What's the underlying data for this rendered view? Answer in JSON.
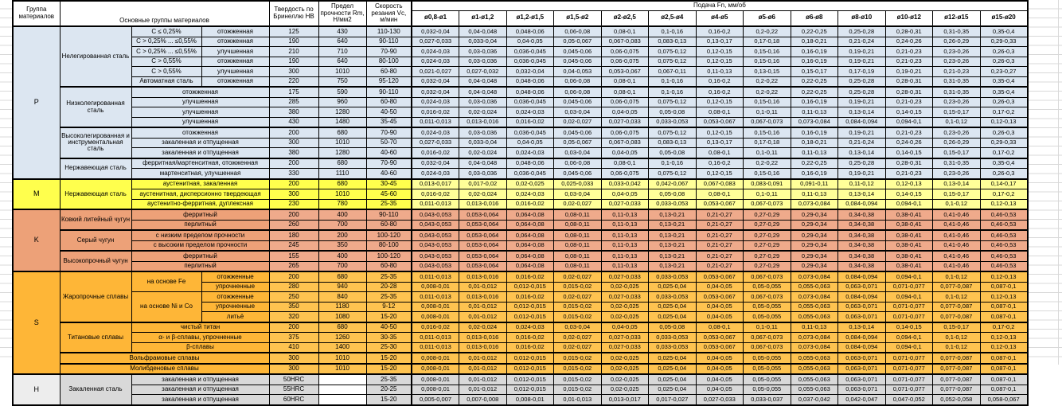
{
  "table": {
    "header": {
      "group_label": "Группа материалов",
      "main_groups_label": "Основные группы материалов",
      "hardness_label": "Твердость по Бринеллю HB",
      "strength_label": "Предел прочности Rm, Н/мм2",
      "speed_label": "Скорость резания Vc, м/мин",
      "feed_label": "Подача Fn, мм/об",
      "diameters": [
        "ø0,8-ø1",
        "ø1-ø1,2",
        "ø1,2-ø1,5",
        "ø1,5-ø2",
        "ø2-ø2,5",
        "ø2,5-ø4",
        "ø4-ø5",
        "ø5-ø6",
        "ø6-ø8",
        "ø8-ø10",
        "ø10-ø12",
        "ø12-ø15",
        "ø15-ø20"
      ]
    },
    "feed_sets": {
      "FA": [
        "0,032-0,04",
        "0,04-0,048",
        "0,048-0,06",
        "0,06-0,08",
        "0,08-0,1",
        "0,1-0,16",
        "0,16-0,2",
        "0,2-0,22",
        "0,22-0,25",
        "0,25-0,28",
        "0,28-0,31",
        "0,31-0,35",
        "0,35-0,4"
      ],
      "FB": [
        "0,027-0,033",
        "0,033-0,04",
        "0,04-0,05",
        "0,05-0,067",
        "0,067-0,083",
        "0,083-0,13",
        "0,13-0,17",
        "0,17-0,18",
        "0,18-0,21",
        "0,21-0,24",
        "0,24-0,26",
        "0,26-0,29",
        "0,29-0,33"
      ],
      "FC": [
        "0,024-0,03",
        "0,03-0,036",
        "0,036-0,045",
        "0,045-0,06",
        "0,06-0,075",
        "0,075-0,12",
        "0,12-0,15",
        "0,15-0,16",
        "0,16-0,19",
        "0,19-0,21",
        "0,21-0,23",
        "0,23-0,26",
        "0,26-0,3"
      ],
      "FD": [
        "0,021-0,027",
        "0,027-0,032",
        "0,032-0,04",
        "0,04-0,053",
        "0,053-0,067",
        "0,067-0,11",
        "0,11-0,13",
        "0,13-0,15",
        "0,15-0,17",
        "0,17-0,19",
        "0,19-0,21",
        "0,21-0,23",
        "0,23-0,27"
      ],
      "FE": [
        "0,016-0,02",
        "0,02-0,024",
        "0,024-0,03",
        "0,03-0,04",
        "0,04-0,05",
        "0,05-0,08",
        "0,08-0,1",
        "0,1-0,11",
        "0,11-0,13",
        "0,13-0,14",
        "0,14-0,15",
        "0,15-0,17",
        "0,17-0,2"
      ],
      "FF": [
        "0,011-0,013",
        "0,013-0,016",
        "0,016-0,02",
        "0,02-0,027",
        "0,027-0,033",
        "0,033-0,053",
        "0,053-0,067",
        "0,067-0,073",
        "0,073-0,084",
        "0,084-0,094",
        "0,094-0,1",
        "0,1-0,12",
        "0,12-0,13"
      ],
      "FG": [
        "0,013-0,017",
        "0,017-0,02",
        "0,02-0,025",
        "0,025-0,033",
        "0,033-0,042",
        "0,042-0,067",
        "0,067-0,083",
        "0,083-0,091",
        "0,091-0,11",
        "0,11-0,12",
        "0,12-0,13",
        "0,13-0,14",
        "0,14-0,17"
      ],
      "FK": [
        "0,043-0,053",
        "0,053-0,064",
        "0,064-0,08",
        "0,08-0,11",
        "0,11-0,13",
        "0,13-0,21",
        "0,21-0,27",
        "0,27-0,29",
        "0,29-0,34",
        "0,34-0,38",
        "0,38-0,41",
        "0,41-0,46",
        "0,46-0,53"
      ],
      "FH": [
        "0,008-0,01",
        "0,01-0,012",
        "0,012-0,015",
        "0,015-0,02",
        "0,02-0,025",
        "0,025-0,04",
        "0,04-0,05",
        "0,05-0,055",
        "0,055-0,063",
        "0,063-0,071",
        "0,071-0,077",
        "0,077-0,087",
        "0,087-0,1"
      ],
      "FI": [
        "0,005-0,007",
        "0,007-0,008",
        "0,008-0,01",
        "0,01-0,013",
        "0,013-0,017",
        "0,017-0,027",
        "0,027-0,033",
        "0,033-0,037",
        "0,037-0,042",
        "0,042-0,047",
        "0,047-0,052",
        "0,052-0,058",
        "0,058-0,067"
      ]
    },
    "groups": [
      {
        "label": "P",
        "colors": {
          "letter": "#DCE6F1",
          "left": "#DCE6F1",
          "num": "#DCE6F1",
          "feed": "#DCE6F1"
        },
        "rows": [
          {
            "left": [
              {
                "t": "Нелегированная сталь",
                "rs": 6
              },
              {
                "t": "C ≤ 0,25%"
              },
              {
                "t": "отожженная"
              }
            ],
            "hb": "125",
            "rm": "430",
            "vc": "110-130",
            "feeds": "FA"
          },
          {
            "left": [
              {
                "t": "C > 0,25% ... ≤0,55%"
              },
              {
                "t": "отожженная"
              }
            ],
            "hb": "190",
            "rm": "640",
            "vc": "90-110",
            "feeds": "FB"
          },
          {
            "left": [
              {
                "t": "C > 0,25% ... ≤0,55%"
              },
              {
                "t": "улучшенная"
              }
            ],
            "hb": "210",
            "rm": "710",
            "vc": "70-90",
            "feeds": "FC"
          },
          {
            "left": [
              {
                "t": "C > 0,55%"
              },
              {
                "t": "отожженная"
              }
            ],
            "hb": "190",
            "rm": "640",
            "vc": "80-100",
            "feeds": "FC"
          },
          {
            "left": [
              {
                "t": "C > 0,55%"
              },
              {
                "t": "улучшенная"
              }
            ],
            "hb": "300",
            "rm": "1010",
            "vc": "60-80",
            "feeds": "FD"
          },
          {
            "left": [
              {
                "t": "Автоматная сталь"
              },
              {
                "t": "отожженная"
              }
            ],
            "hb": "220",
            "rm": "750",
            "vc": "95-120",
            "feeds": "FA"
          },
          {
            "sep": true,
            "left": [
              {
                "t": "Низколегированная сталь",
                "rs": 4
              },
              {
                "t": "отожженная",
                "cs": 2
              }
            ],
            "hb": "175",
            "rm": "590",
            "vc": "90-110",
            "feeds": "FA"
          },
          {
            "left": [
              {
                "t": "улучшенная",
                "cs": 2
              }
            ],
            "hb": "285",
            "rm": "960",
            "vc": "60-80",
            "feeds": "FC"
          },
          {
            "left": [
              {
                "t": "улучшенная",
                "cs": 2
              }
            ],
            "hb": "380",
            "rm": "1280",
            "vc": "40-50",
            "feeds": "FE"
          },
          {
            "left": [
              {
                "t": "улучшенная",
                "cs": 2
              }
            ],
            "hb": "430",
            "rm": "1480",
            "vc": "35-45",
            "feeds": "FF"
          },
          {
            "sep": true,
            "left": [
              {
                "t": "Высоколегированная и инструментальная сталь",
                "rs": 3
              },
              {
                "t": "отожженная",
                "cs": 2
              }
            ],
            "hb": "200",
            "rm": "680",
            "vc": "70-90",
            "feeds": "FC"
          },
          {
            "left": [
              {
                "t": "закаленная и отпущенная",
                "cs": 2
              }
            ],
            "hb": "300",
            "rm": "1010",
            "vc": "50-70",
            "feeds": "FB"
          },
          {
            "left": [
              {
                "t": "закаленная и отпущенная",
                "cs": 2
              }
            ],
            "hb": "380",
            "rm": "1280",
            "vc": "40-60",
            "feeds": "FE"
          },
          {
            "sep": true,
            "left": [
              {
                "t": "Нержавеющая сталь",
                "rs": 2
              },
              {
                "t": "ферритная/мартенситная, отожженная",
                "cs": 2
              }
            ],
            "hb": "200",
            "rm": "680",
            "vc": "70-90",
            "feeds": "FA"
          },
          {
            "left": [
              {
                "t": "мартенситная, улучшенная",
                "cs": 2
              }
            ],
            "hb": "330",
            "rm": "1110",
            "vc": "40-60",
            "feeds": "FC"
          }
        ]
      },
      {
        "label": "M",
        "colors": {
          "letter": "#FFFF4D",
          "left": "#FFFF4D",
          "num": "#FFFF4D",
          "feed": "#FFFF99"
        },
        "rows": [
          {
            "left": [
              {
                "t": "Нержавеющая сталь",
                "rs": 3
              },
              {
                "t": "аустенитная, закаленная",
                "cs": 2
              }
            ],
            "hb": "200",
            "rm": "680",
            "vc": "30-45",
            "feeds": "FG"
          },
          {
            "left": [
              {
                "t": "аустенитная, дисперсионно твердеющая",
                "cs": 2
              }
            ],
            "hb": "300",
            "rm": "1010",
            "vc": "45-60",
            "feeds": "FE"
          },
          {
            "left": [
              {
                "t": "аустенитно-ферритная, дуплексная",
                "cs": 2
              }
            ],
            "hb": "230",
            "rm": "780",
            "vc": "25-35",
            "feeds": "FF"
          }
        ]
      },
      {
        "label": "K",
        "colors": {
          "letter": "#EDA178",
          "left": "#EDA178",
          "num": "#EFAA8B",
          "feed": "#EFAA8B"
        },
        "rows": [
          {
            "left": [
              {
                "t": "Ковкий литейный чугун",
                "rs": 2
              },
              {
                "t": "ферритный",
                "cs": 2
              }
            ],
            "hb": "200",
            "rm": "400",
            "vc": "90-110",
            "feeds": "FK"
          },
          {
            "left": [
              {
                "t": "перлитный",
                "cs": 2
              }
            ],
            "hb": "260",
            "rm": "700",
            "vc": "60-80",
            "feeds": "FK"
          },
          {
            "sep": true,
            "left": [
              {
                "t": "Серый чугун",
                "rs": 2
              },
              {
                "t": "с низким пределом прочности",
                "cs": 2
              }
            ],
            "hb": "180",
            "rm": "200",
            "vc": "100-120",
            "feeds": "FK"
          },
          {
            "left": [
              {
                "t": "с высоким пределом прочности",
                "cs": 2
              }
            ],
            "hb": "245",
            "rm": "350",
            "vc": "80-100",
            "feeds": "FK"
          },
          {
            "sep": true,
            "left": [
              {
                "t": "Высокопрочный чугун",
                "rs": 2
              },
              {
                "t": "ферритный",
                "cs": 2
              }
            ],
            "hb": "155",
            "rm": "400",
            "vc": "100-120",
            "feeds": "FK"
          },
          {
            "left": [
              {
                "t": "перлитный",
                "cs": 2
              }
            ],
            "hb": "265",
            "rm": "700",
            "vc": "60-80",
            "feeds": "FK"
          }
        ]
      },
      {
        "label": "S",
        "colors": {
          "letter": "#FEB637",
          "left": "#FEB637",
          "num": "#FEC350",
          "feed": "#FEC350"
        },
        "rows": [
          {
            "left": [
              {
                "t": "Жаропрочные сплавы",
                "rs": 5
              },
              {
                "t": "на основе Fe",
                "rs": 2
              },
              {
                "t": "отожженные"
              }
            ],
            "hb": "200",
            "rm": "680",
            "vc": "25-35",
            "feeds": "FF"
          },
          {
            "left": [
              {
                "t": "упрочненные"
              }
            ],
            "hb": "280",
            "rm": "940",
            "vc": "20-28",
            "feeds": "FH"
          },
          {
            "left": [
              {
                "t": "на основе Ni и Co",
                "rs": 3
              },
              {
                "t": "отожженные"
              }
            ],
            "hb": "250",
            "rm": "840",
            "vc": "25-35",
            "feeds": "FF"
          },
          {
            "left": [
              {
                "t": "упрочненные"
              }
            ],
            "hb": "350",
            "rm": "1180",
            "vc": "9-12",
            "feeds": "FH"
          },
          {
            "left": [
              {
                "t": "литьё"
              }
            ],
            "hb": "320",
            "rm": "1080",
            "vc": "15-20",
            "feeds": "FH"
          },
          {
            "sep": true,
            "left": [
              {
                "t": "Титановые сплавы",
                "rs": 3
              },
              {
                "t": "чистый титан",
                "cs": 2
              }
            ],
            "hb": "200",
            "rm": "680",
            "vc": "40-50",
            "feeds": "FE"
          },
          {
            "left": [
              {
                "t": "α- и β-сплавы, упрочненные",
                "cs": 2
              }
            ],
            "hb": "375",
            "rm": "1260",
            "vc": "30-35",
            "feeds": "FF"
          },
          {
            "left": [
              {
                "t": "β-сплавы",
                "cs": 2
              }
            ],
            "hb": "410",
            "rm": "1400",
            "vc": "25-30",
            "feeds": "FF"
          },
          {
            "sep": true,
            "left": [
              {
                "t": "Вольфрамовые сплавы",
                "cs": 3
              }
            ],
            "hb": "300",
            "rm": "1010",
            "vc": "15-20",
            "feeds": "FH"
          },
          {
            "sep": true,
            "left": [
              {
                "t": "Молибденовые сплавы",
                "cs": 3
              }
            ],
            "hb": "300",
            "rm": "1010",
            "vc": "15-20",
            "feeds": "FH"
          }
        ]
      },
      {
        "label": "H",
        "colors": {
          "letter": "#EDEDED",
          "left": "#D9D9D9",
          "num": "#D9D9D9",
          "feed": "#D9D9D9"
        },
        "rows": [
          {
            "left": [
              {
                "t": "Закаленная сталь",
                "rs": 3
              },
              {
                "t": "закаленная и отпущенная",
                "cs": 2
              }
            ],
            "hb": "50HRC",
            "rm": "",
            "vc": "25-35",
            "feeds": "FH"
          },
          {
            "left": [
              {
                "t": "закаленная и отпущенная",
                "cs": 2
              }
            ],
            "hb": "55HRC",
            "rm": "",
            "vc": "20-25",
            "feeds": "FH"
          },
          {
            "left": [
              {
                "t": "закаленная и отпущенная",
                "cs": 2
              }
            ],
            "hb": "60HRC",
            "rm": "",
            "vc": "15-20",
            "feeds": "FI"
          }
        ]
      }
    ]
  }
}
